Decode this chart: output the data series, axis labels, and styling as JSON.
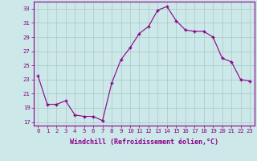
{
  "x": [
    0,
    1,
    2,
    3,
    4,
    5,
    6,
    7,
    8,
    9,
    10,
    11,
    12,
    13,
    14,
    15,
    16,
    17,
    18,
    19,
    20,
    21,
    22,
    23
  ],
  "y": [
    23.5,
    19.5,
    19.5,
    20.0,
    18.0,
    17.8,
    17.8,
    17.2,
    22.5,
    25.8,
    27.5,
    29.5,
    30.5,
    32.8,
    33.3,
    31.3,
    30.0,
    29.8,
    29.8,
    29.0,
    26.0,
    25.5,
    23.0,
    22.8
  ],
  "line_color": "#8B008B",
  "marker": "P",
  "marker_size": 2.5,
  "bg_color": "#cce8e8",
  "grid_color": "#aac8c8",
  "xlabel": "Windchill (Refroidissement éolien,°C)",
  "ylabel": "",
  "ylim": [
    16.5,
    34.0
  ],
  "yticks": [
    17,
    19,
    21,
    23,
    25,
    27,
    29,
    31,
    33
  ],
  "xlim": [
    -0.5,
    23.5
  ],
  "xticks": [
    0,
    1,
    2,
    3,
    4,
    5,
    6,
    7,
    8,
    9,
    10,
    11,
    12,
    13,
    14,
    15,
    16,
    17,
    18,
    19,
    20,
    21,
    22,
    23
  ],
  "axis_color": "#8B008B",
  "tick_color": "#8B008B",
  "label_color": "#8B008B",
  "tick_fontsize": 5.2,
  "xlabel_fontsize": 6.0
}
